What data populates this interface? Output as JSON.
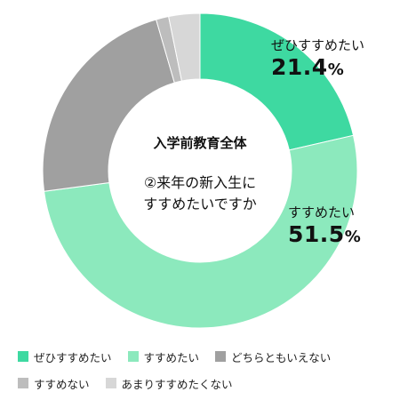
{
  "chart_data": {
    "type": "pie",
    "title": "入学前教育全体",
    "subtitle_lines": [
      "②来年の新入生に",
      "すすめたいですか"
    ],
    "categories": [
      "ぜひすすめたい",
      "すすめたい",
      "どちらともいえない",
      "すすめない",
      "あまりすすめたくない"
    ],
    "values": [
      21.4,
      51.5,
      22.6,
      1.3,
      3.2
    ],
    "colors": [
      "#3ed9a1",
      "#8ce9bd",
      "#a0a0a0",
      "#bdbdbd",
      "#d7d7d7"
    ],
    "data_labels": [
      {
        "name": "ぜひすすめたい",
        "value": "21.4",
        "unit": "%"
      },
      {
        "name": "すすめたい",
        "value": "51.5",
        "unit": "%"
      }
    ],
    "legend_placement": "bottom"
  }
}
